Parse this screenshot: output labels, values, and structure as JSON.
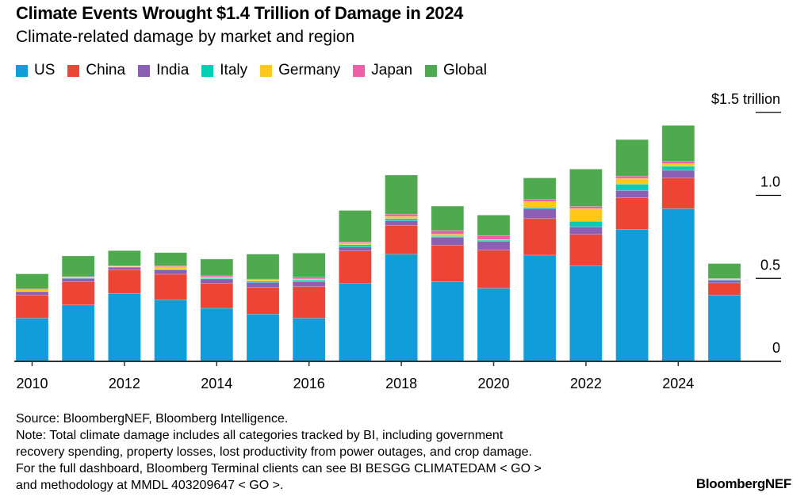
{
  "title": "Climate Events Wrought $1.4 Trillion of Damage in 2024",
  "subtitle": "Climate-related damage by market and region",
  "notes": [
    "Source: BloombergNEF, Bloomberg Intelligence.",
    "Note: Total climate damage includes all categories tracked by BI, including government",
    "recovery spending, property losses, lost productivity from power outages, and crop damage.",
    "For the full dashboard, Bloomberg Terminal clients can see BI BESGG CLIMATEDAM < GO >",
    "and methodology at MMDL 403209647 < GO >."
  ],
  "brand": "BloombergNEF",
  "chart_data": {
    "type": "bar",
    "stacked": true,
    "title": "Climate Events Wrought $1.4 Trillion of Damage in 2024",
    "subtitle": "Climate-related damage by market and region",
    "ylabel": "",
    "ylim": [
      0,
      1.5
    ],
    "y_ticks": [
      {
        "value": 0,
        "label": "0"
      },
      {
        "value": 0.5,
        "label": "0.5"
      },
      {
        "value": 1.0,
        "label": "1.0"
      },
      {
        "value": 1.5,
        "label": "$1.5 trillion"
      }
    ],
    "x_tick_labels": [
      "2010",
      "2012",
      "2014",
      "2016",
      "2018",
      "2020",
      "2022",
      "2024"
    ],
    "legend_position": "top-left",
    "grid": false,
    "categories": [
      "2010",
      "2011",
      "2012",
      "2013",
      "2014",
      "2015",
      "2016",
      "2017",
      "2018",
      "2019",
      "2020",
      "2021",
      "2022",
      "2023",
      "2024",
      "2025"
    ],
    "series": [
      {
        "name": "US",
        "color": "#0f9ed9",
        "values": [
          0.26,
          0.34,
          0.41,
          0.37,
          0.32,
          0.285,
          0.26,
          0.47,
          0.645,
          0.48,
          0.44,
          0.64,
          0.575,
          0.795,
          0.92,
          0.4
        ]
      },
      {
        "name": "China",
        "color": "#ec4435",
        "values": [
          0.14,
          0.14,
          0.14,
          0.155,
          0.15,
          0.16,
          0.19,
          0.195,
          0.175,
          0.22,
          0.23,
          0.22,
          0.19,
          0.19,
          0.185,
          0.073
        ]
      },
      {
        "name": "India",
        "color": "#8b5fb4",
        "values": [
          0.02,
          0.02,
          0.017,
          0.027,
          0.027,
          0.03,
          0.03,
          0.024,
          0.027,
          0.048,
          0.054,
          0.06,
          0.046,
          0.044,
          0.046,
          0.016
        ]
      },
      {
        "name": "Italy",
        "color": "#00cfb4",
        "values": [
          0.002,
          0.002,
          0.002,
          0.003,
          0.004,
          0.008,
          0.01,
          0.014,
          0.013,
          0.005,
          0.006,
          0.007,
          0.033,
          0.038,
          0.024,
          0.003
        ]
      },
      {
        "name": "Germany",
        "color": "#ffc81a",
        "values": [
          0.01,
          0.005,
          0.003,
          0.015,
          0.007,
          0.008,
          0.007,
          0.01,
          0.013,
          0.013,
          0.003,
          0.035,
          0.076,
          0.035,
          0.016,
          0.005
        ]
      },
      {
        "name": "Japan",
        "color": "#ef5fa7",
        "values": [
          0.005,
          0.003,
          0.005,
          0.005,
          0.008,
          0.005,
          0.01,
          0.006,
          0.014,
          0.022,
          0.025,
          0.013,
          0.013,
          0.014,
          0.013,
          0.002
        ]
      },
      {
        "name": "Global",
        "color": "#4fa94f",
        "values": [
          0.09,
          0.125,
          0.09,
          0.08,
          0.1,
          0.15,
          0.145,
          0.19,
          0.235,
          0.147,
          0.123,
          0.13,
          0.225,
          0.22,
          0.217,
          0.09
        ]
      }
    ]
  }
}
